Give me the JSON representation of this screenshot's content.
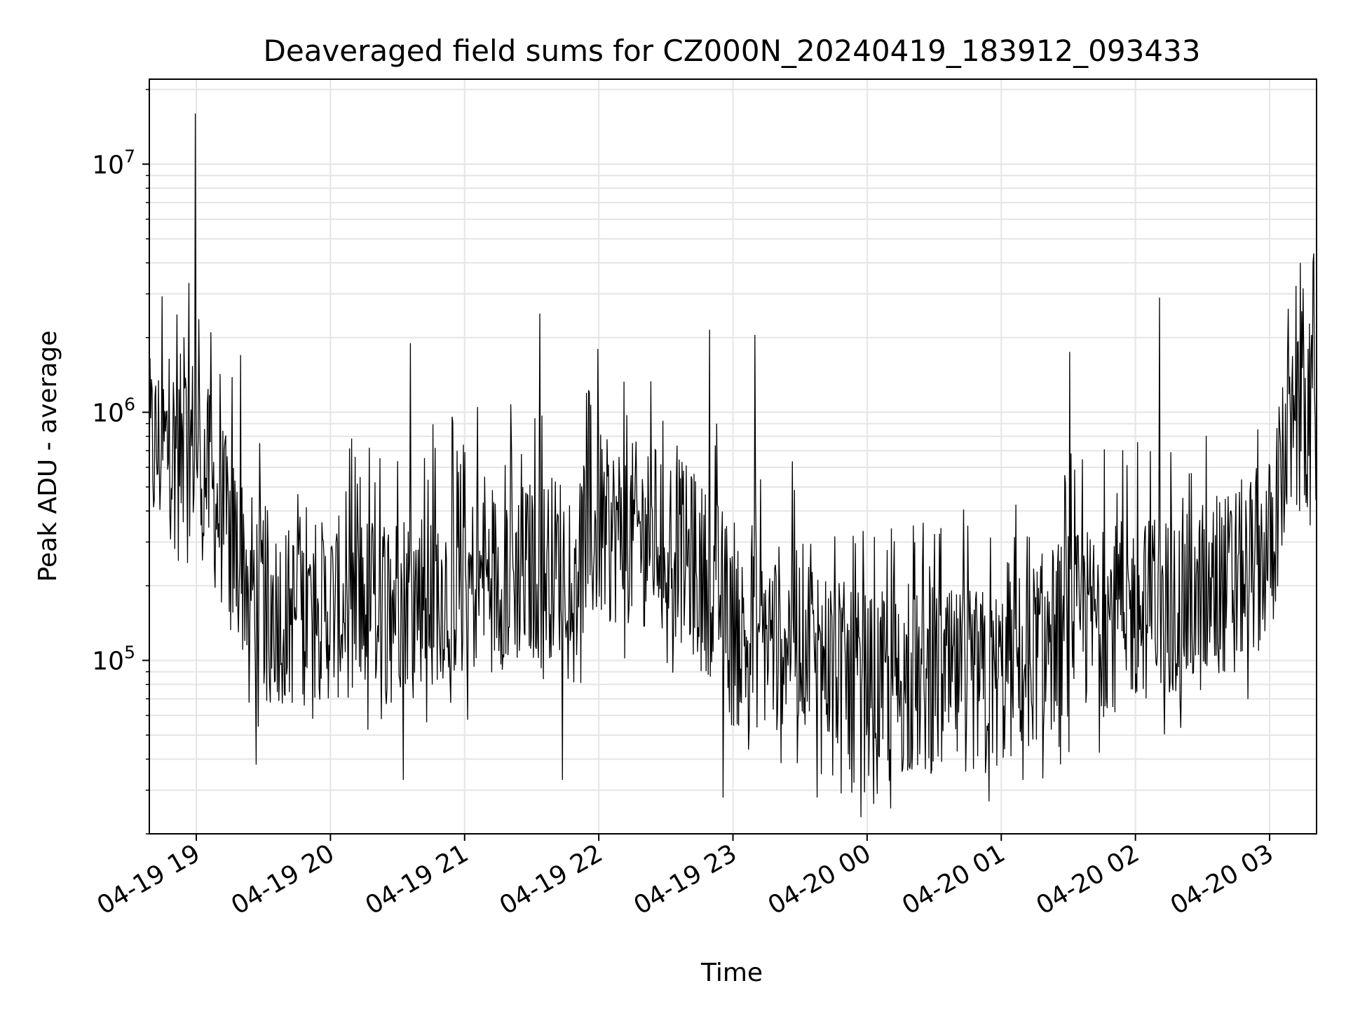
{
  "chart_data": {
    "type": "line",
    "title": "Deaveraged field sums for CZ000N_20240419_183912_093433",
    "xlabel": "Time",
    "ylabel": "Peak ADU - average",
    "yscale": "log",
    "ylim": [
      20000,
      22000000
    ],
    "xlim": [
      "2024-04-19 18:39",
      "2024-04-20 03:21"
    ],
    "grid": true,
    "line_color": "#000000",
    "x_tick_labels": [
      "04-19 19",
      "04-19 20",
      "04-19 21",
      "04-19 22",
      "04-19 23",
      "04-20 00",
      "04-20 01",
      "04-20 02",
      "04-20 03"
    ],
    "x_tick_times": [
      "2024-04-19 19:00",
      "2024-04-19 20:00",
      "2024-04-19 21:00",
      "2024-04-19 22:00",
      "2024-04-19 23:00",
      "2024-04-20 00:00",
      "2024-04-20 01:00",
      "2024-04-20 02:00",
      "2024-04-20 03:00"
    ],
    "y_ticks": [
      {
        "value": 100000,
        "base": "10",
        "exp": "5"
      },
      {
        "value": 1000000,
        "base": "10",
        "exp": "6"
      },
      {
        "value": 10000000,
        "base": "10",
        "exp": "7"
      }
    ],
    "series": [
      {
        "baseline": [
          [
            "2024-04-19 18:39",
            700000
          ],
          [
            "2024-04-19 19:00",
            750000
          ],
          [
            "2024-04-19 19:10",
            400000
          ],
          [
            "2024-04-19 19:25",
            200000
          ],
          [
            "2024-04-19 19:40",
            150000
          ],
          [
            "2024-04-19 20:00",
            160000
          ],
          [
            "2024-04-19 20:30",
            180000
          ],
          [
            "2024-04-19 21:00",
            200000
          ],
          [
            "2024-04-19 21:30",
            230000
          ],
          [
            "2024-04-19 21:45",
            250000
          ],
          [
            "2024-04-19 22:00",
            330000
          ],
          [
            "2024-04-19 22:30",
            320000
          ],
          [
            "2024-04-19 22:55",
            180000
          ],
          [
            "2024-04-19 23:00",
            120000
          ],
          [
            "2024-04-19 23:30",
            130000
          ],
          [
            "2024-04-19 23:55",
            80000
          ],
          [
            "2024-04-20 00:30",
            80000
          ],
          [
            "2024-04-20 01:00",
            85000
          ],
          [
            "2024-04-20 01:30",
            140000
          ],
          [
            "2024-04-20 02:00",
            160000
          ],
          [
            "2024-04-20 02:30",
            170000
          ],
          [
            "2024-04-20 03:00",
            280000
          ],
          [
            "2024-04-20 03:08",
            750000
          ],
          [
            "2024-04-20 03:21",
            1050000
          ]
        ],
        "peaks": [
          [
            "2024-04-19 19:00",
            16000000
          ],
          [
            "2024-04-19 19:07",
            2100000
          ],
          [
            "2024-04-19 19:20",
            1700000
          ],
          [
            "2024-04-19 20:36",
            1900000
          ],
          [
            "2024-04-19 21:06",
            1050000
          ],
          [
            "2024-04-19 21:34",
            2500000
          ],
          [
            "2024-04-19 22:00",
            1800000
          ],
          [
            "2024-04-19 22:50",
            2150000
          ],
          [
            "2024-04-19 23:10",
            2050000
          ],
          [
            "2024-04-20 01:31",
            1750000
          ],
          [
            "2024-04-20 02:11",
            2900000
          ],
          [
            "2024-04-20 03:14",
            4000000
          ],
          [
            "2024-04-20 03:19",
            2050000
          ]
        ],
        "troughs": [
          [
            "2024-04-19 19:27",
            38000
          ],
          [
            "2024-04-19 20:33",
            33000
          ],
          [
            "2024-04-19 21:44",
            33000
          ],
          [
            "2024-04-19 22:56",
            28000
          ],
          [
            "2024-04-19 23:38",
            28000
          ],
          [
            "2024-04-20 00:05",
            29000
          ],
          [
            "2024-04-20 00:55",
            27000
          ],
          [
            "2024-04-20 01:10",
            33000
          ]
        ]
      }
    ]
  }
}
